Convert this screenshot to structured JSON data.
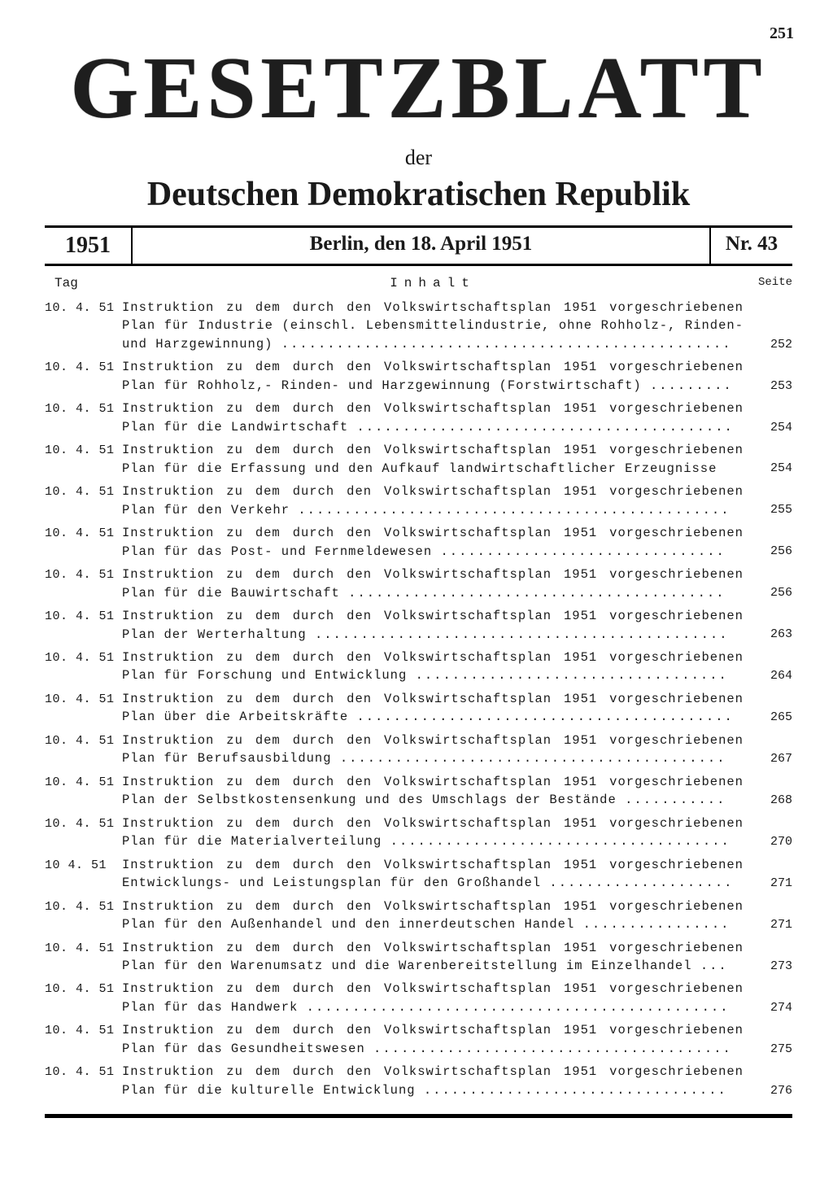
{
  "page_number": "251",
  "masthead": {
    "title": "GESETZBLATT",
    "sub": "der",
    "country": "Deutschen Demokratischen Republik"
  },
  "issue": {
    "year": "1951",
    "place_date": "Berlin, den 18. April 1951",
    "nr": "Nr. 43"
  },
  "headers": {
    "tag": "Tag",
    "inhalt": "Inhalt",
    "seite": "Seite"
  },
  "entries": [
    {
      "tag": "10. 4. 51",
      "text": "Instruktion zu dem durch den Volkswirtschaftsplan 1951 vorgeschriebenen Plan für Industrie (einschl. Lebensmittelindustrie, ohne Rohholz-, Rinden- und Harzgewinnung)",
      "page": "252"
    },
    {
      "tag": "10. 4. 51",
      "text": "Instruktion zu dem durch den Volkswirtschaftsplan 1951 vorgeschriebenen Plan für Rohholz,- Rinden- und Harzgewinnung (Forstwirtschaft)",
      "page": "253"
    },
    {
      "tag": "10. 4. 51",
      "text": "Instruktion zu dem durch den Volkswirtschaftsplan 1951 vorgeschriebenen Plan für die Landwirtschaft",
      "page": "254"
    },
    {
      "tag": "10. 4. 51",
      "text": "Instruktion zu dem durch den Volkswirtschaftsplan 1951 vorgeschriebenen Plan für die Erfassung und den Aufkauf landwirtschaftlicher Erzeugnisse",
      "page": "254"
    },
    {
      "tag": "10. 4. 51",
      "text": "Instruktion zu dem durch den Volkswirtschaftsplan 1951 vorgeschriebenen Plan für den Verkehr",
      "page": "255"
    },
    {
      "tag": "10. 4. 51",
      "text": "Instruktion zu dem durch den Volkswirtschaftsplan 1951 vorgeschriebenen Plan für das Post- und Fernmeldewesen",
      "page": "256"
    },
    {
      "tag": "10. 4. 51",
      "text": "Instruktion zu dem durch den Volkswirtschaftsplan 1951 vorgeschriebenen Plan für die Bauwirtschaft",
      "page": "256"
    },
    {
      "tag": "10. 4. 51",
      "text": "Instruktion zu dem durch den Volkswirtschaftsplan 1951 vorgeschriebenen Plan der Werterhaltung",
      "page": "263"
    },
    {
      "tag": "10. 4. 51",
      "text": "Instruktion zu dem durch den Volkswirtschaftsplan 1951 vorgeschriebenen Plan für Forschung und Entwicklung",
      "page": "264"
    },
    {
      "tag": "10. 4. 51",
      "text": "Instruktion zu dem durch den Volkswirtschaftsplan 1951 vorgeschriebenen Plan über die Arbeitskräfte",
      "page": "265"
    },
    {
      "tag": "10. 4. 51",
      "text": "Instruktion zu dem durch den Volkswirtschaftsplan 1951 vorgeschriebenen Plan für Berufsausbildung",
      "page": "267"
    },
    {
      "tag": "10. 4. 51",
      "text": "Instruktion zu dem durch den Volkswirtschaftsplan 1951 vorgeschriebenen Plan der Selbstkostensenkung und des Umschlags der Bestände",
      "page": "268"
    },
    {
      "tag": "10. 4. 51",
      "text": "Instruktion zu dem durch den Volkswirtschaftsplan 1951 vorgeschriebenen Plan für die Materialverteilung",
      "page": "270"
    },
    {
      "tag": "10  4. 51",
      "text": "Instruktion zu dem durch den Volkswirtschaftsplan 1951 vorgeschriebenen Entwicklungs- und Leistungsplan für den Großhandel",
      "page": "271"
    },
    {
      "tag": "10. 4. 51",
      "text": "Instruktion zu dem durch den Volkswirtschaftsplan 1951 vorgeschriebenen Plan für den Außenhandel und den innerdeutschen Handel",
      "page": "271"
    },
    {
      "tag": "10. 4. 51",
      "text": "Instruktion zu dem durch den Volkswirtschaftsplan 1951 vorgeschriebenen Plan für den Warenumsatz und die Warenbereitstellung im Einzelhandel",
      "page": "273"
    },
    {
      "tag": "10. 4. 51",
      "text": "Instruktion zu dem durch den Volkswirtschaftsplan 1951 vorgeschriebenen Plan für das Handwerk",
      "page": "274"
    },
    {
      "tag": "10. 4. 51",
      "text": "Instruktion zu dem durch den Volkswirtschaftsplan 1951 vorgeschriebenen Plan für das Gesundheitswesen",
      "page": "275"
    },
    {
      "tag": "10. 4. 51",
      "text": "Instruktion zu dem durch den Volkswirtschaftsplan 1951 vorgeschriebenen Plan für die kulturelle Entwicklung",
      "page": "276"
    }
  ]
}
